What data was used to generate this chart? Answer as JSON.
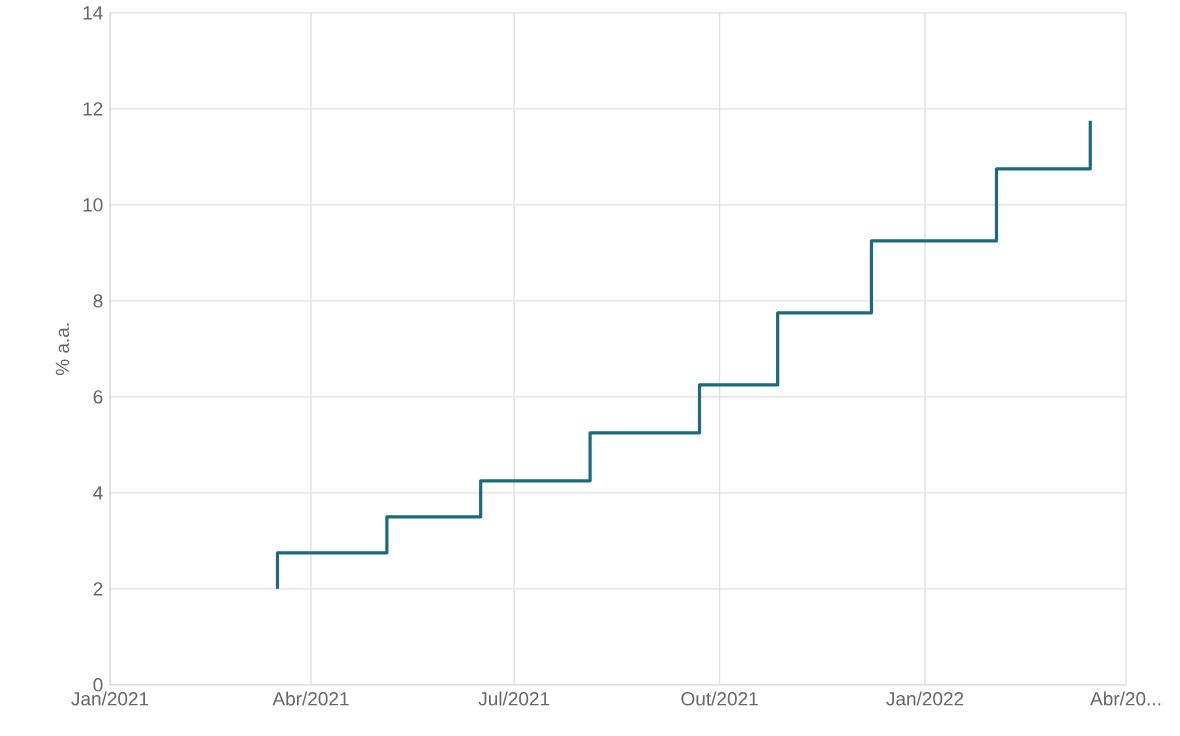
{
  "chart_data": {
    "type": "step",
    "ylabel": "% a.a.",
    "x": [
      "2021-03-17",
      "2021-03-17",
      "2021-05-05",
      "2021-06-16",
      "2021-08-04",
      "2021-09-22",
      "2021-10-27",
      "2021-12-08",
      "2022-02-02",
      "2022-03-16"
    ],
    "series": [
      {
        "color": "#1b6a7e",
        "values": [
          2,
          2.75,
          3.5,
          4.25,
          5.25,
          6.25,
          7.75,
          9.25,
          10.75,
          11.75
        ]
      }
    ],
    "xlim": [
      "2021-01-01",
      "2022-04-01"
    ],
    "xticks": [
      {
        "value": "2021-01-01",
        "label": "Jan/2021"
      },
      {
        "value": "2021-04-01",
        "label": "Abr/2021"
      },
      {
        "value": "2021-07-01",
        "label": "Jul/2021"
      },
      {
        "value": "2021-10-01",
        "label": "Out/2021"
      },
      {
        "value": "2022-01-01",
        "label": "Jan/2022"
      },
      {
        "value": "2022-04-01",
        "label": "Abr/20..."
      }
    ],
    "ylim": [
      0,
      14
    ],
    "yticks": [
      0,
      2,
      4,
      6,
      8,
      10,
      12,
      14
    ],
    "grid": true
  }
}
